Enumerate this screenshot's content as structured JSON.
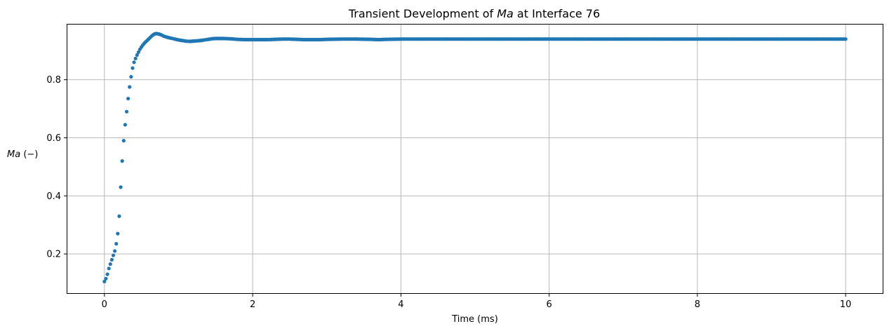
{
  "chart_data": {
    "type": "scatter",
    "title_prefix": "Transient Development of ",
    "title_italic": "Ma",
    "title_suffix": " at Interface 76",
    "xlabel": "Time (ms)",
    "ylabel_italic": "Ma",
    "ylabel_suffix": " (−)",
    "xlim": [
      -0.5,
      10.5
    ],
    "ylim": [
      0.065,
      0.99
    ],
    "xticks": [
      0,
      2,
      4,
      6,
      8,
      10
    ],
    "xtick_labels": [
      "0",
      "2",
      "4",
      "6",
      "8",
      "10"
    ],
    "yticks": [
      0.2,
      0.4,
      0.6,
      0.8
    ],
    "ytick_labels": [
      "0.2",
      "0.4",
      "0.6",
      "0.8"
    ],
    "grid": true,
    "legend": "none",
    "marker_color": "#1f77b4",
    "series": [
      {
        "sample_interval_ms": 0.02,
        "points": [
          [
            0.0,
            0.105
          ],
          [
            0.02,
            0.115
          ],
          [
            0.04,
            0.13
          ],
          [
            0.06,
            0.15
          ],
          [
            0.08,
            0.165
          ],
          [
            0.1,
            0.18
          ],
          [
            0.12,
            0.195
          ],
          [
            0.14,
            0.21
          ],
          [
            0.16,
            0.235
          ],
          [
            0.18,
            0.27
          ],
          [
            0.2,
            0.33
          ],
          [
            0.22,
            0.43
          ],
          [
            0.24,
            0.52
          ],
          [
            0.26,
            0.59
          ],
          [
            0.28,
            0.645
          ],
          [
            0.3,
            0.69
          ],
          [
            0.32,
            0.735
          ],
          [
            0.34,
            0.775
          ],
          [
            0.36,
            0.81
          ],
          [
            0.38,
            0.84
          ],
          [
            0.4,
            0.86
          ],
          [
            0.42,
            0.873
          ],
          [
            0.44,
            0.885
          ],
          [
            0.46,
            0.895
          ],
          [
            0.48,
            0.905
          ],
          [
            0.5,
            0.913
          ],
          [
            0.52,
            0.92
          ],
          [
            0.54,
            0.926
          ],
          [
            0.56,
            0.931
          ],
          [
            0.58,
            0.936
          ],
          [
            0.6,
            0.941
          ],
          [
            0.62,
            0.946
          ],
          [
            0.64,
            0.951
          ],
          [
            0.66,
            0.955
          ],
          [
            0.68,
            0.958
          ],
          [
            0.7,
            0.959
          ],
          [
            0.72,
            0.958
          ],
          [
            0.74,
            0.957
          ],
          [
            0.76,
            0.955
          ],
          [
            0.78,
            0.953
          ],
          [
            0.8,
            0.95
          ],
          [
            0.85,
            0.946
          ],
          [
            0.9,
            0.943
          ],
          [
            0.95,
            0.94
          ],
          [
            1.0,
            0.937
          ],
          [
            1.05,
            0.935
          ],
          [
            1.1,
            0.933
          ],
          [
            1.15,
            0.932
          ],
          [
            1.2,
            0.933
          ],
          [
            1.25,
            0.934
          ],
          [
            1.3,
            0.935
          ],
          [
            1.35,
            0.937
          ],
          [
            1.4,
            0.939
          ],
          [
            1.45,
            0.941
          ],
          [
            1.5,
            0.942
          ],
          [
            1.55,
            0.942
          ],
          [
            1.6,
            0.942
          ],
          [
            1.7,
            0.941
          ],
          [
            1.8,
            0.939
          ],
          [
            1.9,
            0.938
          ],
          [
            2.0,
            0.938
          ],
          [
            2.1,
            0.938
          ],
          [
            2.2,
            0.938
          ],
          [
            2.3,
            0.939
          ],
          [
            2.4,
            0.94
          ],
          [
            2.5,
            0.94
          ],
          [
            2.6,
            0.939
          ],
          [
            2.7,
            0.938
          ],
          [
            2.8,
            0.938
          ],
          [
            2.9,
            0.938
          ],
          [
            3.0,
            0.939
          ],
          [
            3.2,
            0.94
          ],
          [
            3.4,
            0.94
          ],
          [
            3.6,
            0.939
          ],
          [
            3.7,
            0.938
          ],
          [
            3.8,
            0.939
          ],
          [
            4.0,
            0.94
          ],
          [
            5.0,
            0.94
          ],
          [
            6.0,
            0.94
          ],
          [
            7.0,
            0.94
          ],
          [
            8.0,
            0.94
          ],
          [
            9.0,
            0.94
          ],
          [
            10.0,
            0.94
          ]
        ]
      }
    ]
  }
}
